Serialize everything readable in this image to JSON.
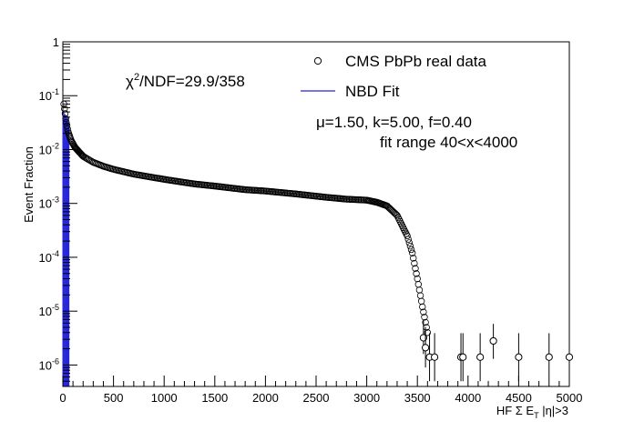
{
  "chart_data": {
    "type": "scatter",
    "title": "",
    "xlabel": "HF Σ E_T |η|>3",
    "xlabel_parts": {
      "prefix": "HF Σ E",
      "sub": "T",
      "suffix": " |η|>3"
    },
    "ylabel": "Event Fraction",
    "xlim": [
      0,
      5000
    ],
    "ylim": [
      4e-07,
      1
    ],
    "yscale": "log",
    "x_ticks": [
      "0",
      "500",
      "1000",
      "1500",
      "2000",
      "2500",
      "3000",
      "3500",
      "4000",
      "4500",
      "5000"
    ],
    "y_ticks": [
      {
        "value": 1,
        "label": "1"
      },
      {
        "value": 0.1,
        "base": "10",
        "exp": "-1"
      },
      {
        "value": 0.01,
        "base": "10",
        "exp": "-2"
      },
      {
        "value": 0.001,
        "base": "10",
        "exp": "-3"
      },
      {
        "value": 0.0001,
        "base": "10",
        "exp": "-4"
      },
      {
        "value": 1e-05,
        "base": "10",
        "exp": "-5"
      },
      {
        "value": 1e-06,
        "base": "10",
        "exp": "-6"
      }
    ],
    "legend": [
      {
        "label": "CMS PbPb real data",
        "marker": "open-circle"
      },
      {
        "label": "NBD Fit",
        "marker": "line"
      }
    ],
    "annotations": {
      "chi2_prefix": "χ",
      "chi2_sup": "2",
      "chi2_suffix": "/NDF=29.9/358",
      "params": "μ=1.50, k=5.00, f=0.40",
      "fit_range": "fit range 40<x<4000"
    },
    "series": [
      {
        "name": "CMS PbPb real data",
        "curve": [
          [
            10,
            0.07
          ],
          [
            20,
            0.05
          ],
          [
            30,
            0.035
          ],
          [
            50,
            0.022
          ],
          [
            80,
            0.015
          ],
          [
            120,
            0.011
          ],
          [
            200,
            0.0075
          ],
          [
            300,
            0.0058
          ],
          [
            400,
            0.0049
          ],
          [
            500,
            0.0043
          ],
          [
            700,
            0.0035
          ],
          [
            1000,
            0.0028
          ],
          [
            1300,
            0.0023
          ],
          [
            1500,
            0.0021
          ],
          [
            1800,
            0.0018
          ],
          [
            2000,
            0.0017
          ],
          [
            2300,
            0.0015
          ],
          [
            2600,
            0.0013
          ],
          [
            2800,
            0.0012
          ],
          [
            3000,
            0.00115
          ],
          [
            3100,
            0.00105
          ],
          [
            3200,
            0.0009
          ],
          [
            3300,
            0.0006
          ],
          [
            3400,
            0.00025
          ],
          [
            3450,
            0.00012
          ],
          [
            3500,
            4e-05
          ],
          [
            3550,
            1.2e-05
          ],
          [
            3600,
            4e-06
          ]
        ],
        "sparse_points": [
          {
            "x": 3560,
            "y": 3.2e-06,
            "err_low": 1.6e-06,
            "err_high": 3.5e-06
          },
          {
            "x": 3580,
            "y": 2.1e-06,
            "err_low": 1.2e-06,
            "err_high": 3e-06
          },
          {
            "x": 3620,
            "y": 1.4e-06,
            "err_low": 9e-07,
            "err_high": 2.5e-06
          },
          {
            "x": 3670,
            "y": 1.4e-06,
            "err_low": 9e-07,
            "err_high": 2.5e-06
          },
          {
            "x": 3930,
            "y": 1.4e-06,
            "err_low": 9e-07,
            "err_high": 2.5e-06
          },
          {
            "x": 3950,
            "y": 1.4e-06,
            "err_low": 9e-07,
            "err_high": 2.5e-06
          },
          {
            "x": 4120,
            "y": 1.4e-06,
            "err_low": 9e-07,
            "err_high": 2.5e-06
          },
          {
            "x": 4250,
            "y": 2.8e-06,
            "err_low": 1.5e-06,
            "err_high": 3e-06
          },
          {
            "x": 4500,
            "y": 1.4e-06,
            "err_low": 9e-07,
            "err_high": 2.5e-06
          },
          {
            "x": 4800,
            "y": 1.4e-06,
            "err_low": 9e-07,
            "err_high": 2.5e-06
          },
          {
            "x": 5000,
            "y": 1.4e-06,
            "err_low": 9e-07,
            "err_high": 2.5e-06
          }
        ]
      },
      {
        "name": "NBD Fit",
        "color": "#2424d8",
        "x_range": [
          0,
          60
        ],
        "peak": 0.05
      }
    ]
  }
}
